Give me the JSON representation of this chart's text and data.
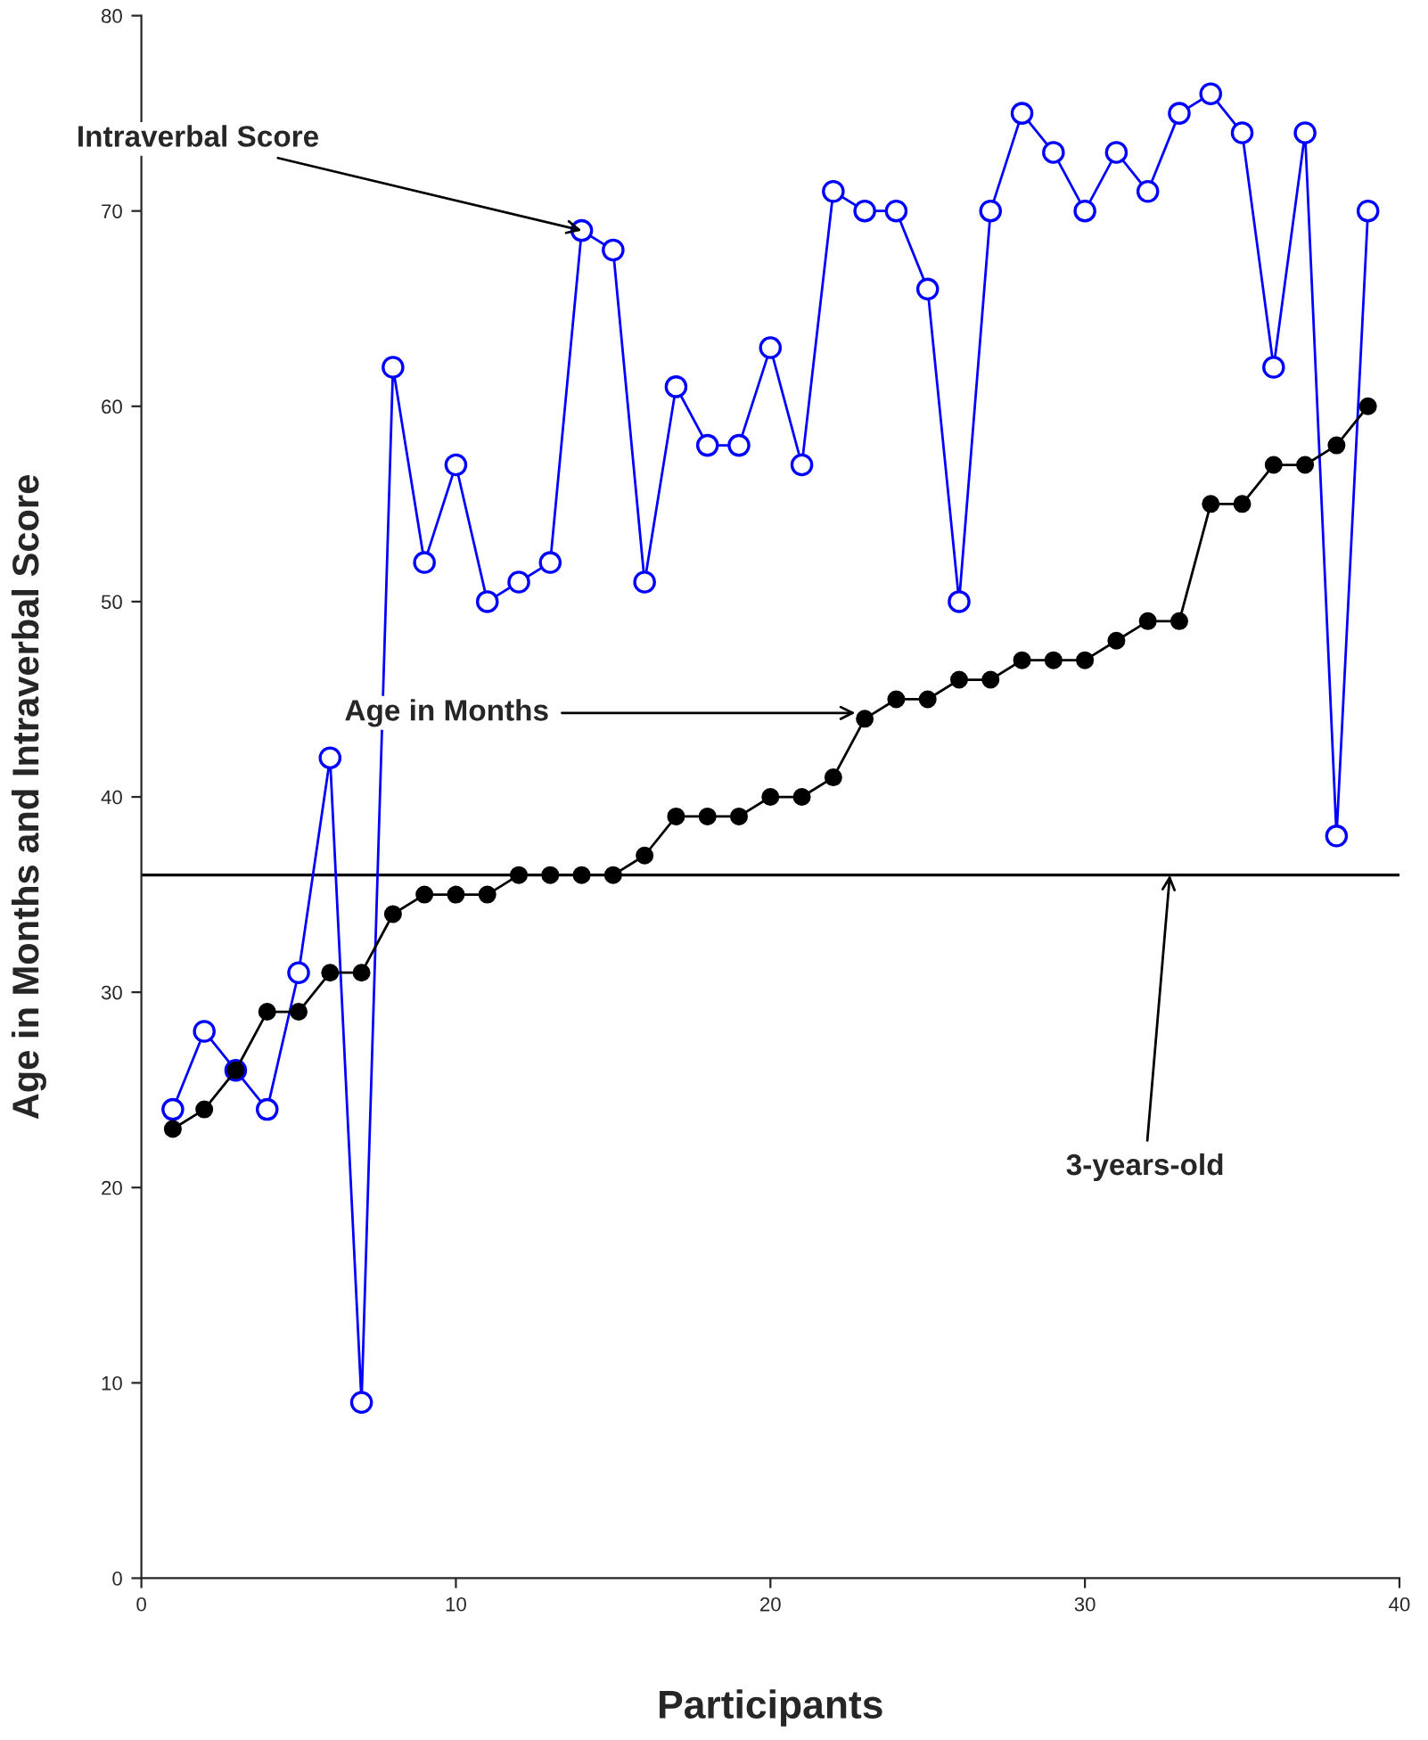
{
  "chart_data": {
    "type": "line",
    "xlabel": "Participants",
    "ylabel": "Age in Months and Intraverbal Score",
    "x": [
      1,
      2,
      3,
      4,
      5,
      6,
      7,
      8,
      9,
      10,
      11,
      12,
      13,
      14,
      15,
      16,
      17,
      18,
      19,
      20,
      21,
      22,
      23,
      24,
      25,
      26,
      27,
      28,
      29,
      30,
      31,
      32,
      33,
      34,
      35,
      36,
      37,
      38,
      39
    ],
    "series": [
      {
        "color": "#0000ff",
        "values": [
          24,
          28,
          26,
          24,
          31,
          42,
          9,
          62,
          52,
          57,
          50,
          51,
          52,
          69,
          68,
          51,
          61,
          58,
          58,
          63,
          57,
          71,
          70,
          70,
          66,
          50,
          70,
          75,
          73,
          70,
          73,
          71,
          75,
          76,
          74,
          62,
          74,
          38,
          70
        ]
      },
      {
        "color": "#000000",
        "values": [
          23,
          24,
          26,
          29,
          29,
          31,
          31,
          34,
          35,
          35,
          35,
          36,
          36,
          36,
          36,
          37,
          39,
          39,
          39,
          40,
          40,
          41,
          44,
          45,
          45,
          46,
          46,
          47,
          47,
          47,
          48,
          49,
          49,
          55,
          55,
          57,
          57,
          58,
          60
        ]
      }
    ],
    "xlim": [
      0,
      40
    ],
    "xticks": [
      0,
      10,
      20,
      30,
      40
    ],
    "ylim": [
      0,
      80
    ],
    "yticks": [
      0,
      10,
      20,
      30,
      40,
      50,
      60,
      70,
      80
    ],
    "ref_lines": [
      {
        "axis": "y",
        "value": 36,
        "color": "#000000"
      }
    ],
    "annotations": [
      {
        "text": "Intraverbal Score",
        "x": 14,
        "y": 69
      },
      {
        "text": "Age in Months",
        "x": 22.7,
        "y": 44.3
      },
      {
        "text": "3-years-old",
        "x": 32.7,
        "y": 36
      }
    ],
    "marker": "circle",
    "line_style": "solid",
    "grid": false,
    "legend": false
  }
}
